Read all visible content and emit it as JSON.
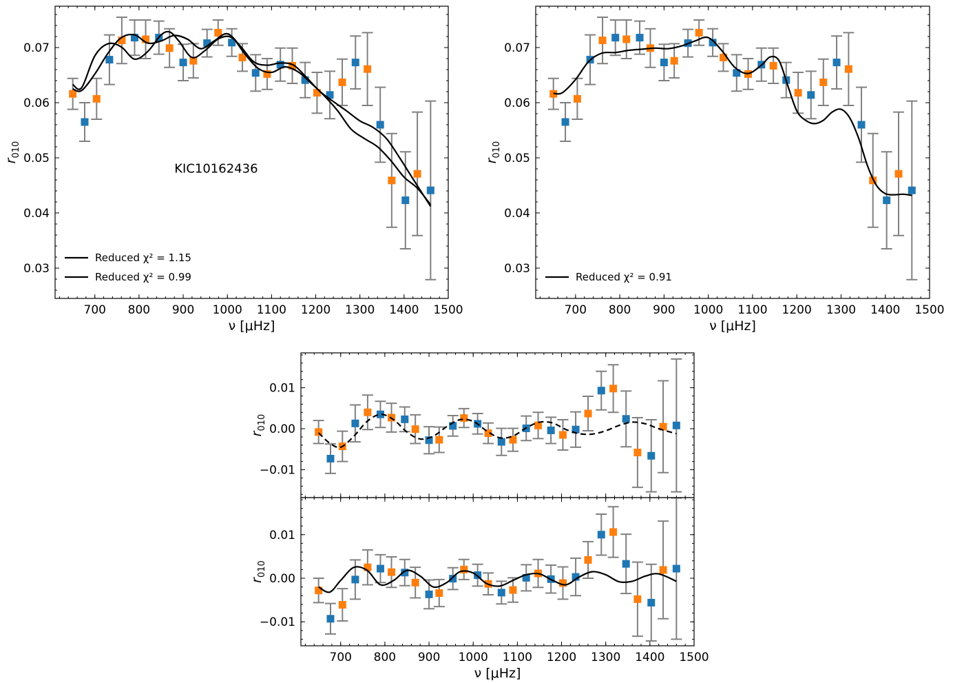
{
  "chart_data": [
    {
      "id": "top-left",
      "type": "scatter",
      "xlabel": "ν [μHz]",
      "ylabel": "r010",
      "xlim": [
        610,
        1500
      ],
      "ylim": [
        0.0245,
        0.0775
      ],
      "xticks": [
        700,
        800,
        900,
        1000,
        1100,
        1200,
        1300,
        1400,
        1500
      ],
      "yticks": [
        0.03,
        0.04,
        0.05,
        0.06,
        0.07
      ],
      "ytick_labels": [
        "0.03",
        "0.04",
        "0.05",
        "0.06",
        "0.07"
      ],
      "annotation": "KIC10162436",
      "legend": [
        "Reduced χ² = 1.15",
        "Reduced χ² = 0.99"
      ],
      "series": [
        {
          "color": "#1f77b4",
          "x": [
            677,
            733,
            790,
            845,
            900,
            954,
            1010,
            1064,
            1120,
            1176,
            1232,
            1290,
            1346,
            1403,
            1460
          ],
          "y": [
            0.0565,
            0.0678,
            0.0718,
            0.0718,
            0.0673,
            0.0708,
            0.0709,
            0.0654,
            0.0669,
            0.0641,
            0.0614,
            0.0673,
            0.056,
            0.0423,
            0.0441
          ],
          "err": [
            0.0035,
            0.0045,
            0.0032,
            0.003,
            0.0033,
            0.0025,
            0.0025,
            0.0033,
            0.003,
            0.0032,
            0.0043,
            0.0048,
            0.0068,
            0.0088,
            0.0162
          ]
        },
        {
          "color": "#ff7f0e",
          "x": [
            650,
            704,
            761,
            815,
            869,
            923,
            979,
            1034,
            1090,
            1147,
            1203,
            1260,
            1317,
            1372,
            1430
          ],
          "y": [
            0.0616,
            0.0607,
            0.0713,
            0.0715,
            0.0699,
            0.0676,
            0.0727,
            0.0682,
            0.0652,
            0.0667,
            0.0618,
            0.0637,
            0.0661,
            0.0459,
            0.0471
          ],
          "err": [
            0.0028,
            0.0037,
            0.0042,
            0.0035,
            0.0035,
            0.0031,
            0.0023,
            0.0025,
            0.0028,
            0.0032,
            0.0037,
            0.0042,
            0.0066,
            0.0085,
            0.0112
          ]
        }
      ],
      "curves": [
        {
          "style": "solid",
          "x": [
            650,
            670,
            700,
            730,
            760,
            790,
            820,
            850,
            880,
            910,
            940,
            970,
            1000,
            1030,
            1060,
            1090,
            1120,
            1150,
            1180,
            1210,
            1240,
            1270,
            1300,
            1330,
            1360,
            1390,
            1420,
            1460
          ],
          "y": [
            0.0625,
            0.0622,
            0.0652,
            0.069,
            0.0718,
            0.0723,
            0.0708,
            0.0712,
            0.0722,
            0.0715,
            0.0698,
            0.0712,
            0.0725,
            0.0702,
            0.0674,
            0.0668,
            0.0672,
            0.0668,
            0.0645,
            0.062,
            0.0602,
            0.0585,
            0.0567,
            0.0555,
            0.0535,
            0.05,
            0.0462,
            0.0412
          ]
        },
        {
          "style": "solid",
          "x": [
            650,
            670,
            700,
            730,
            760,
            790,
            820,
            850,
            870,
            890,
            920,
            950,
            980,
            1010,
            1040,
            1070,
            1100,
            1130,
            1160,
            1190,
            1220,
            1250,
            1280,
            1310,
            1340,
            1370,
            1400,
            1430,
            1460
          ],
          "y": [
            0.0633,
            0.0627,
            0.0685,
            0.0707,
            0.0701,
            0.0679,
            0.0693,
            0.0723,
            0.0728,
            0.0712,
            0.0682,
            0.0695,
            0.0716,
            0.0718,
            0.0688,
            0.0662,
            0.0655,
            0.0665,
            0.0656,
            0.0635,
            0.0612,
            0.0585,
            0.0552,
            0.0535,
            0.052,
            0.0495,
            0.0465,
            0.0445,
            0.0415
          ]
        }
      ]
    },
    {
      "id": "top-right",
      "type": "scatter",
      "xlabel": "ν [μHz]",
      "ylabel": "r010",
      "xlim": [
        610,
        1500
      ],
      "ylim": [
        0.0245,
        0.0775
      ],
      "xticks": [
        700,
        800,
        900,
        1000,
        1100,
        1200,
        1300,
        1400,
        1500
      ],
      "yticks": [
        0.03,
        0.04,
        0.05,
        0.06,
        0.07
      ],
      "ytick_labels": [
        "0.03",
        "0.04",
        "0.05",
        "0.06",
        "0.07"
      ],
      "legend": [
        "Reduced χ² = 0.91"
      ],
      "series": [
        {
          "color": "#1f77b4",
          "x": [
            677,
            733,
            790,
            845,
            900,
            954,
            1010,
            1064,
            1120,
            1176,
            1232,
            1290,
            1346,
            1403,
            1460
          ],
          "y": [
            0.0565,
            0.0678,
            0.0718,
            0.0718,
            0.0673,
            0.0708,
            0.0709,
            0.0654,
            0.0669,
            0.0641,
            0.0614,
            0.0673,
            0.056,
            0.0423,
            0.0441
          ],
          "err": [
            0.0035,
            0.0045,
            0.0032,
            0.003,
            0.0033,
            0.0025,
            0.0025,
            0.0033,
            0.003,
            0.0032,
            0.0043,
            0.0048,
            0.0068,
            0.0088,
            0.0162
          ]
        },
        {
          "color": "#ff7f0e",
          "x": [
            650,
            704,
            761,
            815,
            869,
            923,
            979,
            1034,
            1090,
            1147,
            1203,
            1260,
            1317,
            1372,
            1430
          ],
          "y": [
            0.0616,
            0.0607,
            0.0713,
            0.0715,
            0.0699,
            0.0676,
            0.0727,
            0.0682,
            0.0652,
            0.0667,
            0.0618,
            0.0637,
            0.0661,
            0.0459,
            0.0471
          ],
          "err": [
            0.0028,
            0.0037,
            0.0042,
            0.0035,
            0.0035,
            0.0031,
            0.0023,
            0.0025,
            0.0028,
            0.0032,
            0.0037,
            0.0042,
            0.0066,
            0.0085,
            0.0112
          ]
        }
      ],
      "curves": [
        {
          "style": "solid",
          "x": [
            650,
            670,
            700,
            730,
            760,
            790,
            820,
            850,
            880,
            910,
            940,
            970,
            1000,
            1030,
            1060,
            1090,
            1120,
            1140,
            1160,
            1180,
            1200,
            1220,
            1240,
            1260,
            1280,
            1300,
            1320,
            1340,
            1360,
            1380,
            1400,
            1420,
            1440,
            1460
          ],
          "y": [
            0.0617,
            0.0618,
            0.0642,
            0.0675,
            0.069,
            0.0691,
            0.0695,
            0.0697,
            0.0699,
            0.0698,
            0.0703,
            0.0712,
            0.0718,
            0.0695,
            0.0664,
            0.0653,
            0.0668,
            0.0683,
            0.0676,
            0.063,
            0.0585,
            0.0568,
            0.0562,
            0.0568,
            0.0583,
            0.0588,
            0.0572,
            0.0535,
            0.0485,
            0.045,
            0.0435,
            0.0433,
            0.0434,
            0.0432
          ]
        }
      ]
    },
    {
      "id": "bottom-upper",
      "type": "scatter",
      "xlabel": "",
      "ylabel": "r010",
      "xlim": [
        610,
        1500
      ],
      "ylim": [
        -0.0168,
        0.0185
      ],
      "xticks": [
        700,
        800,
        900,
        1000,
        1100,
        1200,
        1300,
        1400,
        1500
      ],
      "yticks": [
        -0.01,
        0.0,
        0.01
      ],
      "ytick_labels": [
        "−0.01",
        "0.00",
        "0.01"
      ],
      "series": [
        {
          "color": "#1f77b4",
          "x": [
            677,
            733,
            790,
            845,
            900,
            954,
            1010,
            1064,
            1120,
            1176,
            1232,
            1290,
            1346,
            1403,
            1460
          ],
          "y": [
            -0.0073,
            0.0013,
            0.0035,
            0.0023,
            -0.0028,
            0.0007,
            0.0012,
            -0.0032,
            0.0001,
            -0.0004,
            -0.0002,
            0.0093,
            0.0024,
            -0.0066,
            0.0008
          ],
          "err": [
            0.0036,
            0.0045,
            0.0032,
            0.003,
            0.0033,
            0.0025,
            0.0025,
            0.0033,
            0.003,
            0.0032,
            0.0043,
            0.0047,
            0.0068,
            0.0088,
            0.0162
          ]
        },
        {
          "color": "#ff7f0e",
          "x": [
            650,
            704,
            761,
            815,
            869,
            923,
            979,
            1034,
            1090,
            1147,
            1203,
            1260,
            1317,
            1372,
            1430
          ],
          "y": [
            -0.0008,
            -0.0043,
            0.004,
            0.0027,
            -0.0001,
            -0.0027,
            0.0026,
            -0.0011,
            -0.0027,
            0.0008,
            -0.0015,
            0.0037,
            0.0098,
            -0.0058,
            0.0005
          ],
          "err": [
            0.0028,
            0.0037,
            0.0042,
            0.0035,
            0.0035,
            0.0031,
            0.0023,
            0.0025,
            0.0028,
            0.0032,
            0.0037,
            0.0042,
            0.0058,
            0.0085,
            0.0112
          ]
        }
      ],
      "curves": [
        {
          "style": "dashed",
          "x": [
            650,
            675,
            700,
            730,
            760,
            790,
            820,
            850,
            880,
            910,
            940,
            970,
            1000,
            1030,
            1060,
            1090,
            1120,
            1150,
            1180,
            1210,
            1240,
            1270,
            1300,
            1330,
            1360,
            1390,
            1420,
            1460
          ],
          "y": [
            -0.001,
            -0.0035,
            -0.0045,
            -0.0018,
            0.0018,
            0.0035,
            0.0022,
            -0.0008,
            -0.0025,
            -0.0018,
            0.0005,
            0.0022,
            0.0018,
            -0.0005,
            -0.0022,
            -0.0018,
            0.0002,
            0.0016,
            0.0014,
            -0.0002,
            -0.0012,
            -0.0013,
            -0.0005,
            0.0008,
            0.0016,
            0.0012,
            0.0,
            -0.0012
          ]
        }
      ]
    },
    {
      "id": "bottom-lower",
      "type": "scatter",
      "xlabel": "ν [μHz]",
      "ylabel": "r010",
      "xlim": [
        610,
        1500
      ],
      "ylim": [
        -0.0155,
        0.0185
      ],
      "xticks": [
        700,
        800,
        900,
        1000,
        1100,
        1200,
        1300,
        1400,
        1500
      ],
      "yticks": [
        -0.01,
        0.0,
        0.01
      ],
      "ytick_labels": [
        "−0.01",
        "0.00",
        "0.01"
      ],
      "series": [
        {
          "color": "#1f77b4",
          "x": [
            677,
            733,
            790,
            845,
            900,
            954,
            1010,
            1064,
            1120,
            1176,
            1232,
            1290,
            1346,
            1403,
            1460
          ],
          "y": [
            -0.0093,
            -0.0003,
            0.0022,
            0.0013,
            -0.0037,
            -0.0001,
            0.0007,
            -0.0033,
            0.0001,
            -0.0002,
            0.0003,
            0.01,
            0.0033,
            -0.0056,
            0.0022
          ],
          "err": [
            0.0035,
            0.0045,
            0.0032,
            0.003,
            0.0033,
            0.0025,
            0.0025,
            0.0026,
            0.003,
            0.0032,
            0.0043,
            0.0047,
            0.0068,
            0.0088,
            0.0162
          ]
        },
        {
          "color": "#ff7f0e",
          "x": [
            650,
            704,
            761,
            815,
            869,
            923,
            979,
            1034,
            1090,
            1147,
            1203,
            1260,
            1317,
            1372,
            1430
          ],
          "y": [
            -0.0028,
            -0.0061,
            0.0025,
            0.0014,
            -0.001,
            -0.0034,
            0.002,
            -0.0013,
            -0.0027,
            0.0011,
            -0.0011,
            0.0042,
            0.0106,
            -0.0048,
            0.0019
          ],
          "err": [
            0.0028,
            0.0037,
            0.004,
            0.0035,
            0.0035,
            0.0031,
            0.0023,
            0.0025,
            0.0028,
            0.0032,
            0.0037,
            0.0042,
            0.0058,
            0.0085,
            0.0112
          ]
        }
      ],
      "curves": [
        {
          "style": "solid",
          "x": [
            650,
            675,
            700,
            730,
            760,
            790,
            820,
            850,
            880,
            910,
            940,
            970,
            1000,
            1030,
            1060,
            1090,
            1120,
            1150,
            1180,
            1210,
            1240,
            1270,
            1300,
            1330,
            1360,
            1390,
            1420,
            1460
          ],
          "y": [
            -0.002,
            -0.0032,
            -0.0005,
            0.0025,
            0.0018,
            -0.0015,
            -0.0005,
            0.0018,
            0.0005,
            -0.002,
            -0.001,
            0.0015,
            0.0012,
            -0.0012,
            -0.0018,
            -0.0005,
            0.0008,
            0.001,
            -0.0005,
            -0.0015,
            0.0003,
            0.0015,
            0.0008,
            -0.0008,
            -0.0007,
            0.0005,
            0.001,
            -0.0007
          ]
        }
      ]
    }
  ]
}
